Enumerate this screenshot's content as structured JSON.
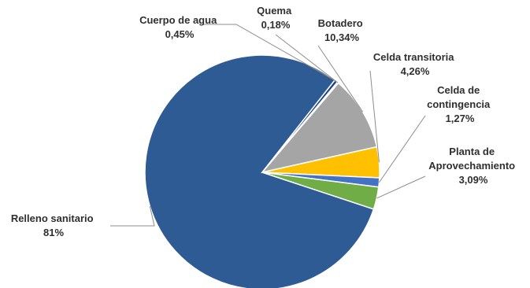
{
  "chart_data": {
    "type": "pie",
    "title": "",
    "slices": [
      {
        "name": "Relleno sanitario",
        "label": "81%",
        "value": 81,
        "color": "#2e5b94"
      },
      {
        "name": "Cuerpo de agua",
        "label": "0,45%",
        "value": 0.45,
        "color": "#1f4788"
      },
      {
        "name": "Quema",
        "label": "0,18%",
        "value": 0.18,
        "color": "#5a6f8f"
      },
      {
        "name": "Botadero",
        "label": "10,34%",
        "value": 10.34,
        "color": "#a5a5a5"
      },
      {
        "name": "Celda transitoria",
        "label": "4,26%",
        "value": 4.26,
        "color": "#ffc000"
      },
      {
        "name": "Celda de contingencia",
        "label": "1,27%",
        "value": 1.27,
        "color": "#4472c4"
      },
      {
        "name": "Planta de Aprovechamiento",
        "label": "3,09%",
        "value": 3.09,
        "color": "#70ad47"
      }
    ]
  }
}
